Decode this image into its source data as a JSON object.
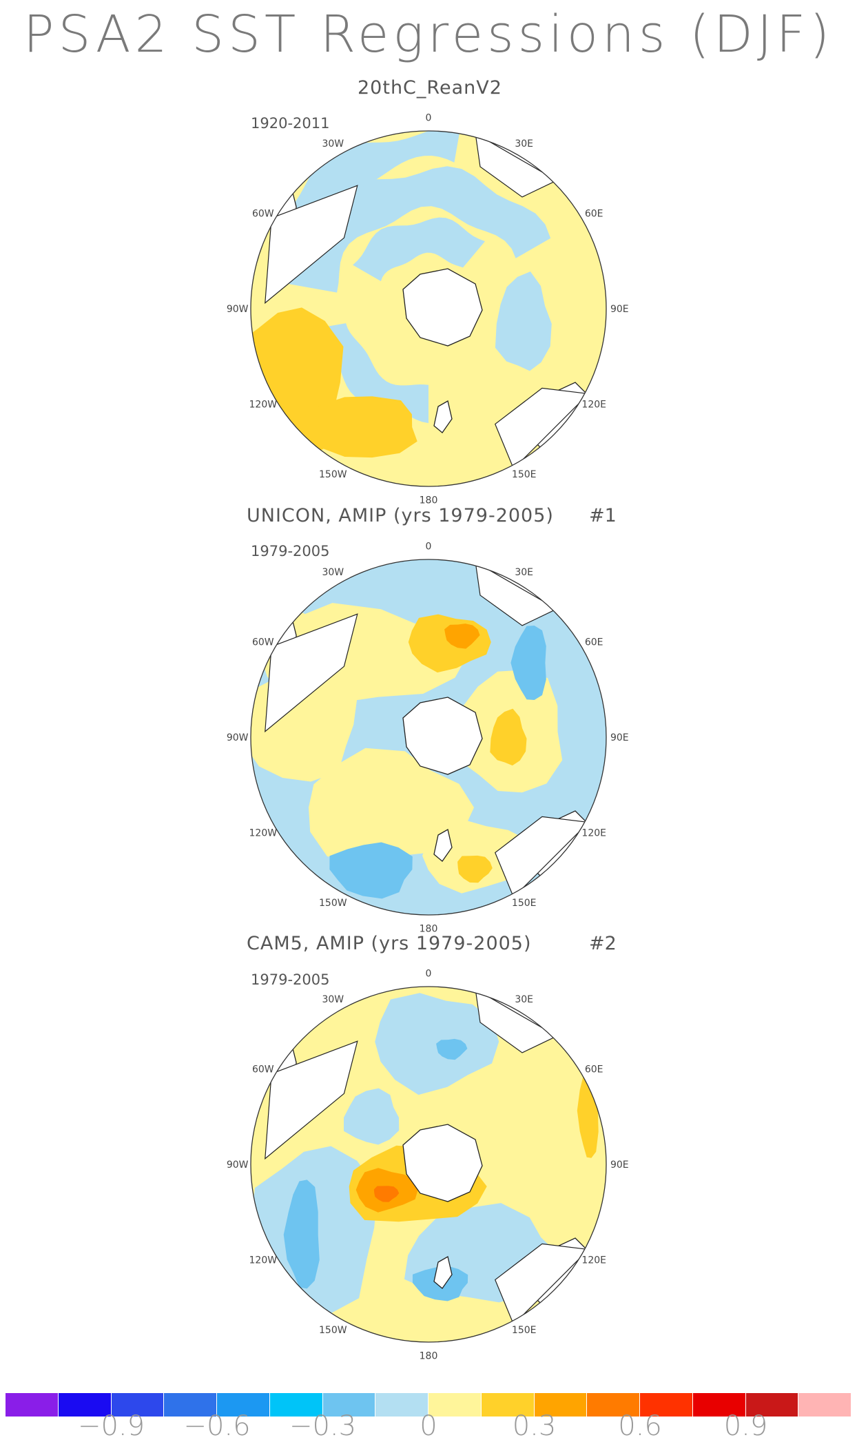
{
  "title": "PSA2 SST Regressions (DJF)",
  "colors": {
    "land": "#ffffff",
    "coast": "#222222",
    "lightblue": "#b3dff2",
    "blue": "#6ec4f0",
    "medblue": "#3fa7ec",
    "yellow": "#fff59a",
    "gold": "#ffd12a",
    "orange": "#ffa400",
    "darkorange": "#ff7b00"
  },
  "panels": [
    {
      "title": "20thC_ReanV2",
      "number": "",
      "period": "1920-2011"
    },
    {
      "title": "UNICON, AMIP (yrs 1979-2005)",
      "number": "#1",
      "period": "1979-2005"
    },
    {
      "title": "CAM5, AMIP (yrs 1979-2005)",
      "number": "#2",
      "period": "1979-2005"
    }
  ],
  "longitude_labels": [
    "0",
    "30E",
    "60E",
    "90E",
    "120E",
    "150E",
    "180",
    "150W",
    "120W",
    "90W",
    "60W",
    "30W"
  ],
  "colorbar": {
    "colors": [
      "#8a1ee8",
      "#1a0bf2",
      "#2d48ec",
      "#2f72ea",
      "#1c98f2",
      "#00c4f8",
      "#6ec4f0",
      "#b3dff2",
      "#fff59a",
      "#ffd12a",
      "#ffa400",
      "#ff7b00",
      "#ff3200",
      "#e80000",
      "#c91818",
      "#ffb4b4"
    ],
    "labels": [
      "-0.9",
      "-0.6",
      "-0.3",
      "0",
      "0.3",
      "0.6",
      "0.9"
    ]
  }
}
